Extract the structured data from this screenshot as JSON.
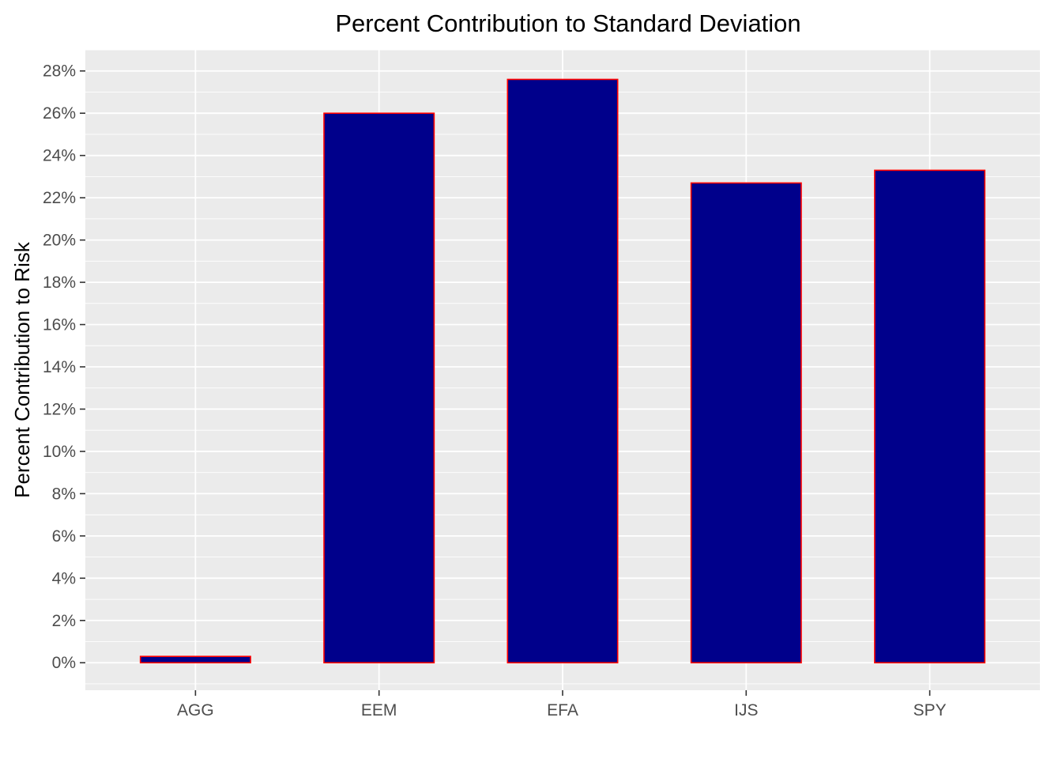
{
  "chart_data": {
    "type": "bar",
    "title": "Percent Contribution to Standard Deviation",
    "xlabel": "",
    "ylabel": "Percent Contribution to Risk",
    "categories": [
      "AGG",
      "EEM",
      "EFA",
      "IJS",
      "SPY"
    ],
    "values": [
      0.3,
      26.0,
      27.6,
      22.7,
      23.3
    ],
    "y_ticks": [
      0,
      2,
      4,
      6,
      8,
      10,
      12,
      14,
      16,
      18,
      20,
      22,
      24,
      26,
      28
    ],
    "y_tick_labels": [
      "0%",
      "2%",
      "4%",
      "6%",
      "8%",
      "10%",
      "12%",
      "14%",
      "16%",
      "18%",
      "20%",
      "22%",
      "24%",
      "26%",
      "28%"
    ],
    "ylim": [
      -1.3,
      29.0
    ],
    "grid": true,
    "legend": "none",
    "colors": {
      "panel_background": "#EBEBEB",
      "grid": "#FFFFFF",
      "bar_fill": "#00008B",
      "bar_outline": "#FF0000",
      "tick_text": "#4D4D4D"
    }
  }
}
